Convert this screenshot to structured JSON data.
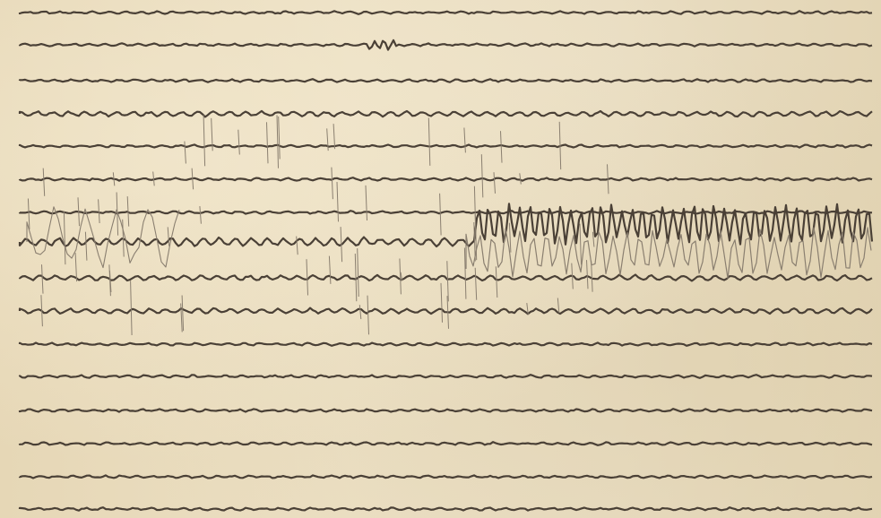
{
  "image": {
    "description_colors": {
      "paper": "#e8dcc0",
      "trace": "#4a4036",
      "faint_trace": "#8a7f70"
    },
    "channel_count": 16
  }
}
